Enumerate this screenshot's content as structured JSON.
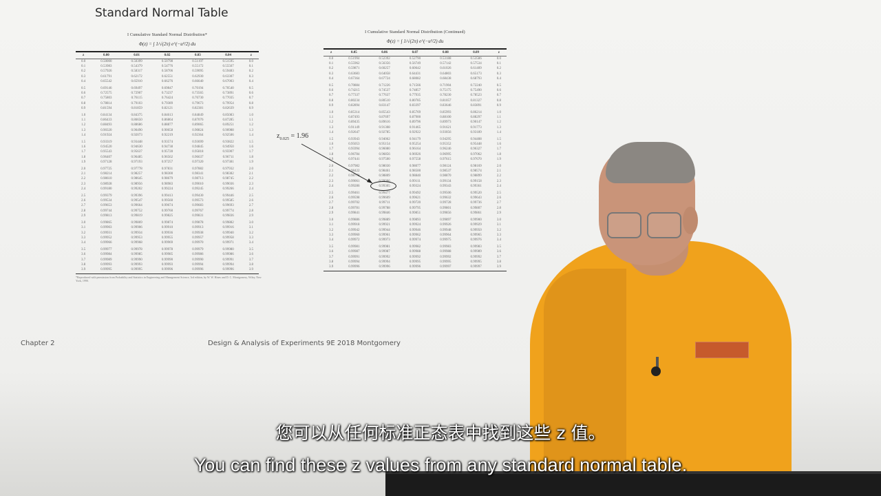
{
  "slide": {
    "title": "Standard Normal Table",
    "footer_left": "Chapter 2",
    "footer_center": "Design & Analysis of Experiments 9E 2018 Montgomery"
  },
  "table_left": {
    "heading": "I    Cumulative Standard Normal Distribution*",
    "formula": "Φ(z) = ∫ 1/√(2π) e^(−u²/2) du",
    "columns": [
      "z",
      "0.00",
      "0.01",
      "0.02",
      "0.03",
      "0.04",
      "z"
    ],
    "rows": [
      [
        "0.0",
        "0.50000",
        "0.50399",
        "0.50798",
        "0.51197",
        "0.51595",
        "0.0"
      ],
      [
        "0.1",
        "0.53983",
        "0.54379",
        "0.54776",
        "0.55172",
        "0.55567",
        "0.1"
      ],
      [
        "0.2",
        "0.57926",
        "0.58317",
        "0.58706",
        "0.59095",
        "0.59483",
        "0.2"
      ],
      [
        "0.3",
        "0.61791",
        "0.62172",
        "0.62551",
        "0.62930",
        "0.63307",
        "0.3"
      ],
      [
        "0.4",
        "0.65542",
        "0.65910",
        "0.66276",
        "0.66640",
        "0.67003",
        "0.4"
      ],
      [
        "0.5",
        "0.69146",
        "0.69497",
        "0.69847",
        "0.70194",
        "0.70540",
        "0.5"
      ],
      [
        "0.6",
        "0.72575",
        "0.72907",
        "0.73237",
        "0.73565",
        "0.73891",
        "0.6"
      ],
      [
        "0.7",
        "0.75803",
        "0.76115",
        "0.76424",
        "0.76730",
        "0.77035",
        "0.7"
      ],
      [
        "0.8",
        "0.78814",
        "0.79103",
        "0.79389",
        "0.79673",
        "0.79954",
        "0.8"
      ],
      [
        "0.9",
        "0.81594",
        "0.81859",
        "0.82121",
        "0.82381",
        "0.82639",
        "0.9"
      ],
      [
        "1.0",
        "0.84134",
        "0.84375",
        "0.84613",
        "0.84849",
        "0.85083",
        "1.0"
      ],
      [
        "1.1",
        "0.86433",
        "0.86650",
        "0.86864",
        "0.87076",
        "0.87285",
        "1.1"
      ],
      [
        "1.2",
        "0.88493",
        "0.88686",
        "0.88877",
        "0.89065",
        "0.89251",
        "1.2"
      ],
      [
        "1.3",
        "0.90320",
        "0.90490",
        "0.90658",
        "0.90824",
        "0.90988",
        "1.3"
      ],
      [
        "1.4",
        "0.91924",
        "0.92073",
        "0.92219",
        "0.92364",
        "0.92506",
        "1.4"
      ],
      [
        "1.5",
        "0.93319",
        "0.93448",
        "0.93574",
        "0.93699",
        "0.93822",
        "1.5"
      ],
      [
        "1.6",
        "0.94520",
        "0.94630",
        "0.94738",
        "0.94845",
        "0.94950",
        "1.6"
      ],
      [
        "1.7",
        "0.95543",
        "0.95637",
        "0.95728",
        "0.95818",
        "0.95907",
        "1.7"
      ],
      [
        "1.8",
        "0.96407",
        "0.96485",
        "0.96562",
        "0.96637",
        "0.96711",
        "1.8"
      ],
      [
        "1.9",
        "0.97128",
        "0.97193",
        "0.97257",
        "0.97320",
        "0.97381",
        "1.9"
      ],
      [
        "2.0",
        "0.97725",
        "0.97778",
        "0.97831",
        "0.97882",
        "0.97932",
        "2.0"
      ],
      [
        "2.1",
        "0.98214",
        "0.98257",
        "0.98300",
        "0.98341",
        "0.98382",
        "2.1"
      ],
      [
        "2.2",
        "0.98610",
        "0.98645",
        "0.98679",
        "0.98713",
        "0.98745",
        "2.2"
      ],
      [
        "2.3",
        "0.98928",
        "0.98956",
        "0.98983",
        "0.99010",
        "0.99036",
        "2.3"
      ],
      [
        "2.4",
        "0.99180",
        "0.99202",
        "0.99224",
        "0.99245",
        "0.99266",
        "2.4"
      ],
      [
        "2.5",
        "0.99379",
        "0.99396",
        "0.99413",
        "0.99430",
        "0.99446",
        "2.5"
      ],
      [
        "2.6",
        "0.99534",
        "0.99547",
        "0.99560",
        "0.99573",
        "0.99585",
        "2.6"
      ],
      [
        "2.7",
        "0.99653",
        "0.99664",
        "0.99674",
        "0.99683",
        "0.99693",
        "2.7"
      ],
      [
        "2.8",
        "0.99744",
        "0.99752",
        "0.99760",
        "0.99767",
        "0.99774",
        "2.8"
      ],
      [
        "2.9",
        "0.99813",
        "0.99819",
        "0.99825",
        "0.99831",
        "0.99836",
        "2.9"
      ],
      [
        "3.0",
        "0.99865",
        "0.99869",
        "0.99874",
        "0.99878",
        "0.99882",
        "3.0"
      ],
      [
        "3.1",
        "0.99903",
        "0.99906",
        "0.99910",
        "0.99913",
        "0.99916",
        "3.1"
      ],
      [
        "3.2",
        "0.99931",
        "0.99934",
        "0.99936",
        "0.99938",
        "0.99940",
        "3.2"
      ],
      [
        "3.3",
        "0.99952",
        "0.99953",
        "0.99955",
        "0.99957",
        "0.99958",
        "3.3"
      ],
      [
        "3.4",
        "0.99966",
        "0.99968",
        "0.99969",
        "0.99970",
        "0.99971",
        "3.4"
      ],
      [
        "3.5",
        "0.99977",
        "0.99978",
        "0.99978",
        "0.99979",
        "0.99980",
        "3.5"
      ],
      [
        "3.6",
        "0.99984",
        "0.99985",
        "0.99985",
        "0.99986",
        "0.99986",
        "3.6"
      ],
      [
        "3.7",
        "0.99989",
        "0.99990",
        "0.99990",
        "0.99990",
        "0.99991",
        "3.7"
      ],
      [
        "3.8",
        "0.99993",
        "0.99993",
        "0.99993",
        "0.99994",
        "0.99994",
        "3.8"
      ],
      [
        "3.9",
        "0.99995",
        "0.99995",
        "0.99996",
        "0.99996",
        "0.99996",
        "3.9"
      ]
    ],
    "footnote": "*Reproduced with permission from Probability and Statistics in Engineering and Management Science, 3rd edition, by W. W. Hines and D. C. Montgomery, Wiley, New York, 1990."
  },
  "table_right": {
    "heading": "I    Cumulative Standard Normal Distribution (Continued)",
    "formula": "Φ(z) = ∫ 1/√(2π) e^(−u²/2) du",
    "columns": [
      "z",
      "0.05",
      "0.06",
      "0.07",
      "0.08",
      "0.09",
      "z"
    ],
    "rows": [
      [
        "0.0",
        "0.51994",
        "0.52392",
        "0.52790",
        "0.53188",
        "0.53586",
        "0.0"
      ],
      [
        "0.1",
        "0.55962",
        "0.56356",
        "0.56749",
        "0.57142",
        "0.57534",
        "0.1"
      ],
      [
        "0.2",
        "0.59871",
        "0.60257",
        "0.60642",
        "0.61026",
        "0.61409",
        "0.2"
      ],
      [
        "0.3",
        "0.63683",
        "0.64058",
        "0.64431",
        "0.64803",
        "0.65173",
        "0.3"
      ],
      [
        "0.4",
        "0.67364",
        "0.67724",
        "0.68082",
        "0.68438",
        "0.68793",
        "0.4"
      ],
      [
        "0.5",
        "0.70884",
        "0.71226",
        "0.71566",
        "0.71904",
        "0.72240",
        "0.5"
      ],
      [
        "0.6",
        "0.74215",
        "0.74537",
        "0.74857",
        "0.75175",
        "0.75490",
        "0.6"
      ],
      [
        "0.7",
        "0.77337",
        "0.77637",
        "0.77935",
        "0.78230",
        "0.78523",
        "0.7"
      ],
      [
        "0.8",
        "0.80234",
        "0.80510",
        "0.80785",
        "0.81057",
        "0.81327",
        "0.8"
      ],
      [
        "0.9",
        "0.82894",
        "0.83147",
        "0.83397",
        "0.83646",
        "0.83891",
        "0.9"
      ],
      [
        "1.0",
        "0.85314",
        "0.85543",
        "0.85769",
        "0.85993",
        "0.86214",
        "1.0"
      ],
      [
        "1.1",
        "0.87493",
        "0.87697",
        "0.87900",
        "0.88100",
        "0.88297",
        "1.1"
      ],
      [
        "1.2",
        "0.89435",
        "0.89616",
        "0.89796",
        "0.89973",
        "0.90147",
        "1.2"
      ],
      [
        "1.3",
        "0.91149",
        "0.91308",
        "0.91465",
        "0.91621",
        "0.91773",
        "1.3"
      ],
      [
        "1.4",
        "0.92647",
        "0.92785",
        "0.92922",
        "0.93056",
        "0.93189",
        "1.4"
      ],
      [
        "1.5",
        "0.93943",
        "0.94062",
        "0.94179",
        "0.94295",
        "0.94408",
        "1.5"
      ],
      [
        "1.6",
        "0.95053",
        "0.95154",
        "0.95254",
        "0.95352",
        "0.95448",
        "1.6"
      ],
      [
        "1.7",
        "0.95994",
        "0.96080",
        "0.96164",
        "0.96246",
        "0.96327",
        "1.7"
      ],
      [
        "1.8",
        "0.96784",
        "0.96856",
        "0.96926",
        "0.96995",
        "0.97062",
        "1.8"
      ],
      [
        "1.9",
        "0.97441",
        "0.97500",
        "0.97558",
        "0.97615",
        "0.97670",
        "1.9"
      ],
      [
        "2.0",
        "0.97982",
        "0.98030",
        "0.98077",
        "0.98124",
        "0.98169",
        "2.0"
      ],
      [
        "2.1",
        "0.98422",
        "0.98461",
        "0.98500",
        "0.98537",
        "0.98574",
        "2.1"
      ],
      [
        "2.2",
        "0.98778",
        "0.98809",
        "0.98840",
        "0.98870",
        "0.98899",
        "2.2"
      ],
      [
        "2.3",
        "0.99061",
        "0.99086",
        "0.99111",
        "0.99134",
        "0.99158",
        "2.3"
      ],
      [
        "2.4",
        "0.99286",
        "0.99305",
        "0.99324",
        "0.99343",
        "0.99361",
        "2.4"
      ],
      [
        "2.5",
        "0.99461",
        "0.99477",
        "0.99492",
        "0.99506",
        "0.99520",
        "2.5"
      ],
      [
        "2.6",
        "0.99598",
        "0.99609",
        "0.99621",
        "0.99632",
        "0.99643",
        "2.6"
      ],
      [
        "2.7",
        "0.99702",
        "0.99711",
        "0.99720",
        "0.99728",
        "0.99736",
        "2.7"
      ],
      [
        "2.8",
        "0.99781",
        "0.99788",
        "0.99795",
        "0.99801",
        "0.99807",
        "2.8"
      ],
      [
        "2.9",
        "0.99841",
        "0.99846",
        "0.99851",
        "0.99856",
        "0.99861",
        "2.9"
      ],
      [
        "3.0",
        "0.99886",
        "0.99889",
        "0.99893",
        "0.99897",
        "0.99900",
        "3.0"
      ],
      [
        "3.1",
        "0.99918",
        "0.99921",
        "0.99924",
        "0.99926",
        "0.99929",
        "3.1"
      ],
      [
        "3.2",
        "0.99942",
        "0.99944",
        "0.99946",
        "0.99948",
        "0.99950",
        "3.2"
      ],
      [
        "3.3",
        "0.99960",
        "0.99961",
        "0.99962",
        "0.99964",
        "0.99965",
        "3.3"
      ],
      [
        "3.4",
        "0.99972",
        "0.99973",
        "0.99974",
        "0.99975",
        "0.99976",
        "3.4"
      ],
      [
        "3.5",
        "0.99981",
        "0.99981",
        "0.99982",
        "0.99983",
        "0.99983",
        "3.5"
      ],
      [
        "3.6",
        "0.99987",
        "0.99987",
        "0.99988",
        "0.99988",
        "0.99989",
        "3.6"
      ],
      [
        "3.7",
        "0.99991",
        "0.99992",
        "0.99992",
        "0.99992",
        "0.99992",
        "3.7"
      ],
      [
        "3.8",
        "0.99994",
        "0.99994",
        "0.99995",
        "0.99995",
        "0.99995",
        "3.8"
      ],
      [
        "3.9",
        "0.99996",
        "0.99996",
        "0.99996",
        "0.99997",
        "0.99997",
        "3.9"
      ]
    ]
  },
  "annotation": {
    "label_prefix": "z",
    "label_sub": "0.025",
    "label_suffix": " = 1.96"
  },
  "subtitles": {
    "chinese": "您可以从任何标准正态表中找到这些 z 值。",
    "english": "You can find these z values from any standard normal table."
  },
  "colors": {
    "shirt": "#f0a21c",
    "slide_bg": "#f2f2f0"
  }
}
